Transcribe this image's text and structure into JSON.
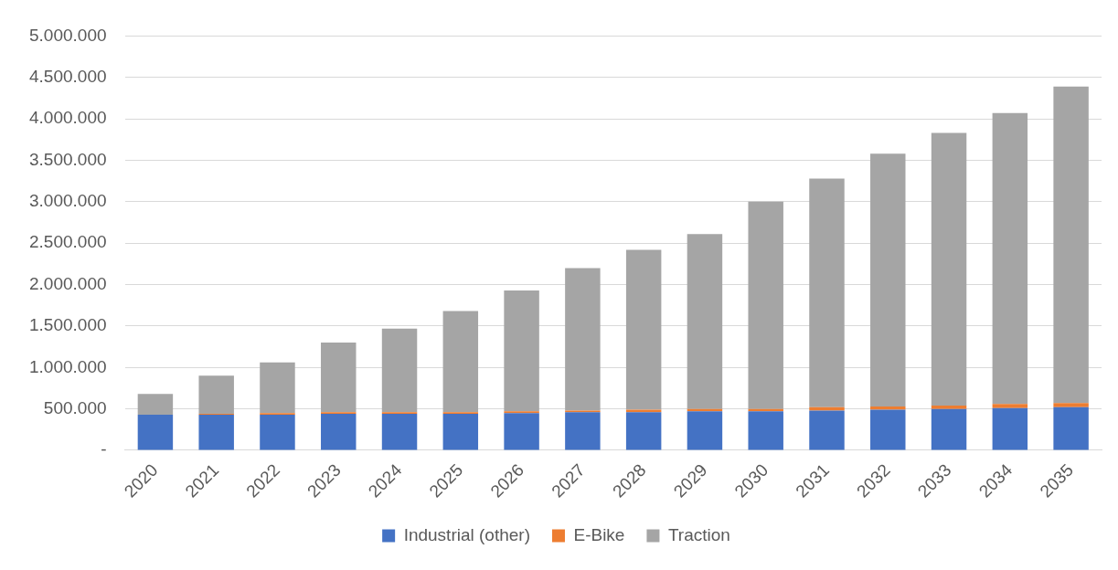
{
  "chart_data": {
    "type": "bar",
    "stacked": true,
    "categories": [
      "2020",
      "2021",
      "2022",
      "2023",
      "2024",
      "2025",
      "2026",
      "2027",
      "2028",
      "2029",
      "2030",
      "2031",
      "2032",
      "2033",
      "2034",
      "2035"
    ],
    "series": [
      {
        "name": "Industrial (other)",
        "color": "#4472c4",
        "values": [
          430000,
          430000,
          430000,
          440000,
          440000,
          440000,
          450000,
          460000,
          460000,
          470000,
          470000,
          480000,
          490000,
          500000,
          510000,
          520000
        ]
      },
      {
        "name": "E-Bike",
        "color": "#ed7d31",
        "values": [
          null,
          10000,
          20000,
          20000,
          20000,
          20000,
          20000,
          20000,
          30000,
          30000,
          30000,
          40000,
          40000,
          40000,
          50000,
          50000
        ]
      },
      {
        "name": "Traction",
        "color": "#a5a5a5",
        "values": [
          250000,
          460000,
          610000,
          840000,
          1010000,
          1220000,
          1460000,
          1720000,
          1930000,
          2110000,
          2500000,
          2760000,
          3050000,
          3290000,
          3510000,
          3820000
        ]
      }
    ],
    "ylim": [
      0,
      5000000
    ],
    "yticks": [
      {
        "value": 0,
        "label": "-"
      },
      {
        "value": 500000,
        "label": "500.000"
      },
      {
        "value": 1000000,
        "label": "1.000.000"
      },
      {
        "value": 1500000,
        "label": "1.500.000"
      },
      {
        "value": 2000000,
        "label": "2.000.000"
      },
      {
        "value": 2500000,
        "label": "2.500.000"
      },
      {
        "value": 3000000,
        "label": "3.000.000"
      },
      {
        "value": 3500000,
        "label": "3.500.000"
      },
      {
        "value": 4000000,
        "label": "4.000.000"
      },
      {
        "value": 4500000,
        "label": "4.500.000"
      },
      {
        "value": 5000000,
        "label": "5.000.000"
      }
    ],
    "grid": "y",
    "legend": "bottom"
  }
}
